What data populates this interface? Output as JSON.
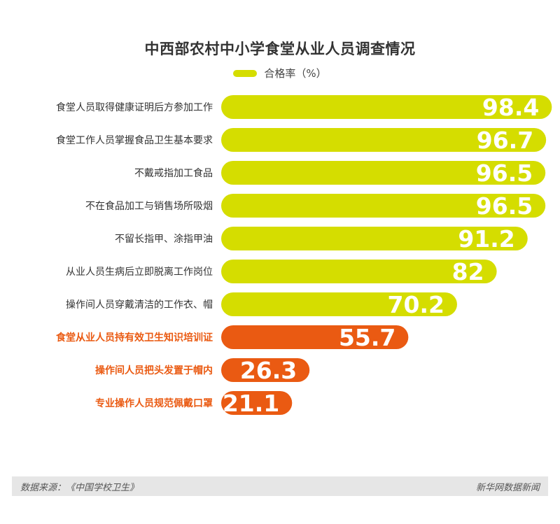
{
  "chart_data": {
    "type": "bar",
    "orientation": "horizontal",
    "title": "中西部农村中小学食堂从业人员调查情况",
    "legend": {
      "label": "合格率（%）",
      "placement": "top"
    },
    "categories": [
      "食堂人员取得健康证明后方参加工作",
      "食堂工作人员掌握食品卫生基本要求",
      "不戴戒指加工食品",
      "不在食品加工与销售场所吸烟",
      "不留长指甲、涂指甲油",
      "从业人员生病后立即脱离工作岗位",
      "操作间人员穿戴清洁的工作衣、帽",
      "食堂从业人员持有效卫生知识培训证",
      "操作间人员把头发置于帽内",
      "专业操作人员规范佩戴口罩"
    ],
    "values": [
      98.4,
      96.7,
      96.5,
      96.5,
      91.2,
      82,
      70.2,
      55.7,
      26.3,
      21.1
    ],
    "data_labels": [
      "98.4",
      "96.7",
      "96.5",
      "96.5",
      "91.2",
      "82",
      "70.2",
      "55.7",
      "26.3",
      "21.1"
    ],
    "highlighted": [
      false,
      false,
      false,
      false,
      false,
      false,
      false,
      true,
      true,
      true
    ],
    "xlim": [
      0,
      100
    ],
    "grid": false
  },
  "colors": {
    "normal_bar": "#d5dd00",
    "highlight_bar": "#ea5a12",
    "normal_label": "#333333",
    "highlight_label": "#ea5a12",
    "value_text": "#ffffff"
  },
  "footer": {
    "source": "数据来源：《中国学校卫生》",
    "credit": "新华网数据新闻"
  }
}
